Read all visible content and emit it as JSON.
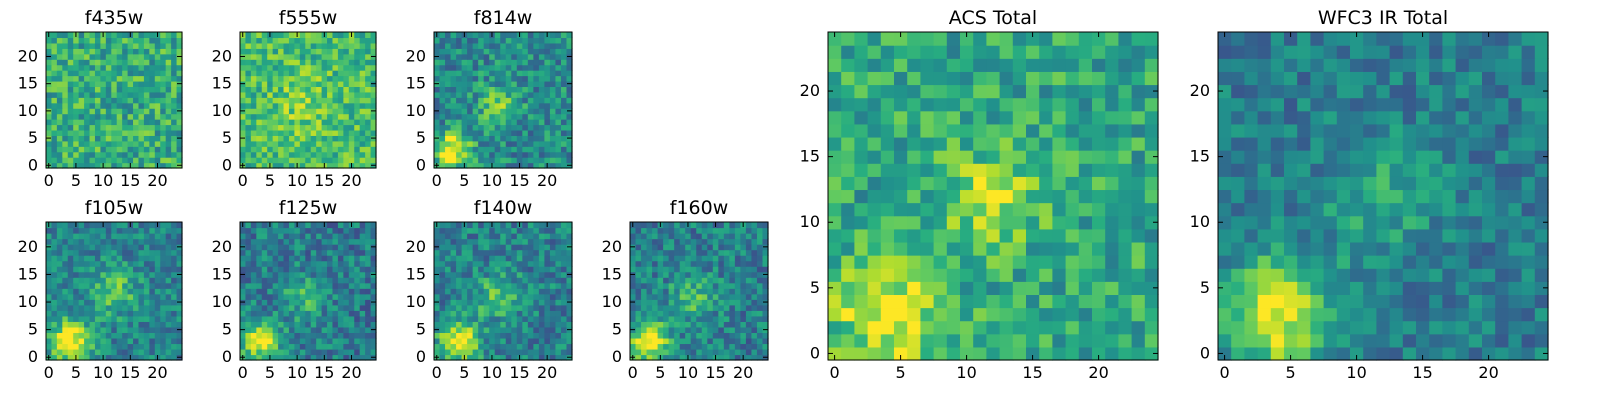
{
  "figure": {
    "layout": "2x4 small panels + 2 large panels"
  },
  "chart_data": [
    {
      "type": "heatmap",
      "title": "f435w",
      "colormap": "viridis",
      "x_ticks": [
        "0",
        "5",
        "10",
        "15",
        "20"
      ],
      "y_ticks": [
        "0",
        "5",
        "10",
        "15",
        "20"
      ],
      "xlim": [
        0,
        25
      ],
      "ylim": [
        0,
        25
      ],
      "grid_size": 25,
      "sources": []
    },
    {
      "type": "heatmap",
      "title": "f555w",
      "colormap": "viridis",
      "x_ticks": [
        "0",
        "5",
        "10",
        "15",
        "20"
      ],
      "y_ticks": [
        "0",
        "5",
        "10",
        "15",
        "20"
      ],
      "xlim": [
        0,
        25
      ],
      "ylim": [
        0,
        25
      ],
      "grid_size": 25,
      "sources": [
        {
          "x": 11,
          "y": 11,
          "sigma": 4,
          "amp": 0.12
        }
      ]
    },
    {
      "type": "heatmap",
      "title": "f814w",
      "colormap": "viridis",
      "x_ticks": [
        "0",
        "5",
        "10",
        "15",
        "20"
      ],
      "y_ticks": [
        "0",
        "5",
        "10",
        "15",
        "20"
      ],
      "xlim": [
        0,
        25
      ],
      "ylim": [
        0,
        25
      ],
      "grid_size": 25,
      "sources": [
        {
          "x": 3,
          "y": 3,
          "sigma": 2.2,
          "amp": 0.55
        },
        {
          "x": 11,
          "y": 11,
          "sigma": 2.5,
          "amp": 0.3
        }
      ]
    },
    {
      "type": "heatmap",
      "title": "f105w",
      "colormap": "viridis",
      "x_ticks": [
        "0",
        "5",
        "10",
        "15",
        "20"
      ],
      "y_ticks": [
        "0",
        "5",
        "10",
        "15",
        "20"
      ],
      "xlim": [
        0,
        25
      ],
      "ylim": [
        0,
        25
      ],
      "grid_size": 25,
      "sources": [
        {
          "x": 4,
          "y": 3,
          "sigma": 2.6,
          "amp": 0.6
        },
        {
          "x": 12,
          "y": 12,
          "sigma": 3,
          "amp": 0.3
        }
      ]
    },
    {
      "type": "heatmap",
      "title": "f125w",
      "colormap": "viridis",
      "x_ticks": [
        "0",
        "5",
        "10",
        "15",
        "20"
      ],
      "y_ticks": [
        "0",
        "5",
        "10",
        "15",
        "20"
      ],
      "xlim": [
        0,
        25
      ],
      "ylim": [
        0,
        25
      ],
      "grid_size": 25,
      "sources": [
        {
          "x": 3,
          "y": 3,
          "sigma": 2.5,
          "amp": 0.55
        },
        {
          "x": 11,
          "y": 11,
          "sigma": 3,
          "amp": 0.22
        }
      ]
    },
    {
      "type": "heatmap",
      "title": "f140w",
      "colormap": "viridis",
      "x_ticks": [
        "0",
        "5",
        "10",
        "15",
        "20"
      ],
      "y_ticks": [
        "0",
        "5",
        "10",
        "15",
        "20"
      ],
      "xlim": [
        0,
        25
      ],
      "ylim": [
        0,
        25
      ],
      "grid_size": 25,
      "sources": [
        {
          "x": 4,
          "y": 3,
          "sigma": 2.5,
          "amp": 0.6
        },
        {
          "x": 11,
          "y": 11,
          "sigma": 3,
          "amp": 0.25
        }
      ]
    },
    {
      "type": "heatmap",
      "title": "f160w",
      "colormap": "viridis",
      "x_ticks": [
        "0",
        "5",
        "10",
        "15",
        "20"
      ],
      "y_ticks": [
        "0",
        "5",
        "10",
        "15",
        "20"
      ],
      "xlim": [
        0,
        25
      ],
      "ylim": [
        0,
        25
      ],
      "grid_size": 25,
      "sources": [
        {
          "x": 3,
          "y": 3,
          "sigma": 2.5,
          "amp": 0.6
        },
        {
          "x": 11,
          "y": 11,
          "sigma": 3,
          "amp": 0.25
        }
      ]
    },
    {
      "type": "heatmap",
      "title": "ACS Total",
      "colormap": "viridis",
      "x_ticks": [
        "0",
        "5",
        "10",
        "15",
        "20"
      ],
      "y_ticks": [
        "0",
        "5",
        "10",
        "15",
        "20"
      ],
      "xlim": [
        0,
        25
      ],
      "ylim": [
        0,
        25
      ],
      "grid_size": 25,
      "sources": [
        {
          "x": 4,
          "y": 3,
          "sigma": 2.8,
          "amp": 0.4
        },
        {
          "x": 12,
          "y": 12,
          "sigma": 2.5,
          "amp": 0.3
        }
      ]
    },
    {
      "type": "heatmap",
      "title": "WFC3 IR Total",
      "colormap": "viridis",
      "x_ticks": [
        "0",
        "5",
        "10",
        "15",
        "20"
      ],
      "y_ticks": [
        "0",
        "5",
        "10",
        "15",
        "20"
      ],
      "xlim": [
        0,
        25
      ],
      "ylim": [
        0,
        25
      ],
      "grid_size": 25,
      "sources": [
        {
          "x": 4,
          "y": 3,
          "sigma": 3,
          "amp": 0.55
        },
        {
          "x": 12,
          "y": 12,
          "sigma": 3,
          "amp": 0.2
        }
      ]
    }
  ]
}
